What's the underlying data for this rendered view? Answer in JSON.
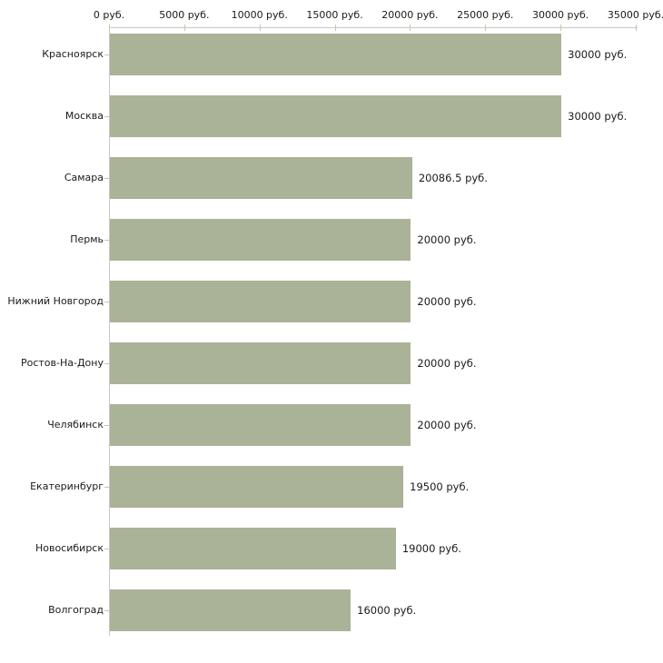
{
  "chart_data": {
    "type": "bar",
    "orientation": "horizontal",
    "title": "",
    "xlabel": "",
    "ylabel": "",
    "categories": [
      "Красноярск",
      "Москва",
      "Самара",
      "Пермь",
      "Нижний Новгород",
      "Ростов-На-Дону",
      "Челябинск",
      "Екатеринбург",
      "Новосибирск",
      "Волгоград"
    ],
    "values": [
      30000,
      30000,
      20086.5,
      20000,
      20000,
      20000,
      20000,
      19500,
      19000,
      16000
    ],
    "value_labels": [
      "30000 руб.",
      "30000 руб.",
      "20086.5 руб.",
      "20000 руб.",
      "20000 руб.",
      "20000 руб.",
      "20000 руб.",
      "19500 руб.",
      "19000 руб.",
      "16000 руб."
    ],
    "x_tick_values": [
      0,
      5000,
      10000,
      15000,
      20000,
      25000,
      30000,
      35000
    ],
    "x_tick_labels": [
      "0 руб.",
      "5000 руб.",
      "10000 руб.",
      "15000 руб.",
      "20000 руб.",
      "25000 руб.",
      "30000 руб.",
      "35000 руб."
    ],
    "xlim": [
      0,
      35000
    ],
    "grid": "off",
    "legend": "none",
    "unit": "руб.",
    "colors": {
      "bar_fill": "#aab298",
      "axis_line": "#c9c9c9",
      "tick_mark": "#c6caa0",
      "text": "#1a1a1a",
      "background": "#ffffff"
    }
  }
}
